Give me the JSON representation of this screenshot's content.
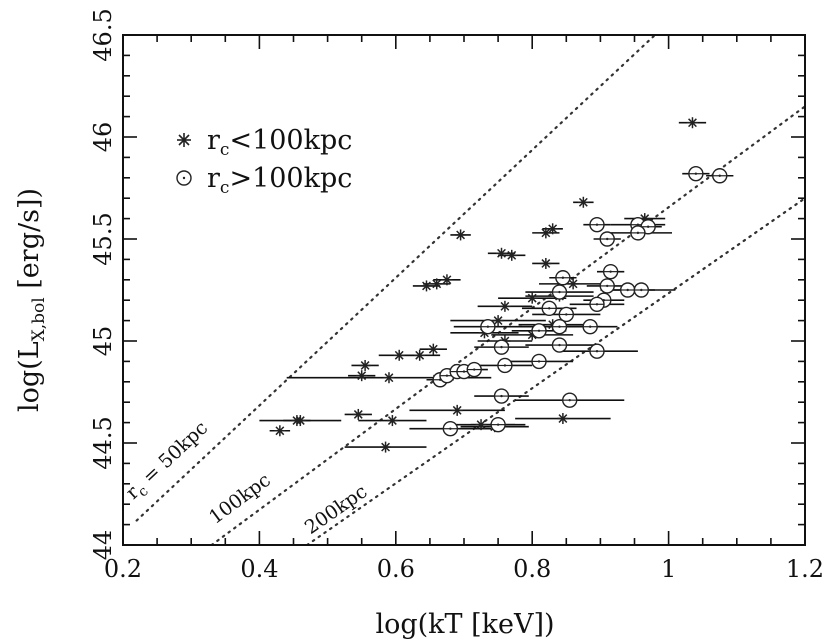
{
  "chart_data": {
    "type": "scatter",
    "title": "",
    "xlabel": "log(kT [keV])",
    "ylabel": {
      "prefix": "log(L",
      "subscript": "X,bol",
      "suffix": " [erg/s])"
    },
    "xlim": [
      0.2,
      1.2
    ],
    "ylim": [
      44,
      46.5
    ],
    "xticks": [
      0.2,
      0.4,
      0.6,
      0.8,
      1,
      1.2
    ],
    "xtick_labels": [
      "0.2",
      "0.4",
      "0.6",
      "0.8",
      "1",
      "1.2"
    ],
    "yticks": [
      44,
      44.5,
      45,
      45.5,
      46,
      46.5
    ],
    "ytick_labels": [
      "44",
      "44.5",
      "45",
      "45.5",
      "46",
      "46.5"
    ],
    "legend": [
      {
        "symbol": "star",
        "prefix": "r",
        "subscript": "c",
        "suffix": "<100kpc"
      },
      {
        "symbol": "circle",
        "prefix": "r",
        "subscript": "c",
        "suffix": ">100kpc"
      }
    ],
    "reference_lines": [
      {
        "label": "r_c = 50kpc",
        "prefix": "r",
        "subscript": "c",
        "suffix": " = 50kpc",
        "x": [
          0.22,
          0.98
        ],
        "y": [
          44.12,
          46.5
        ]
      },
      {
        "label": "100kpc",
        "prefix": "",
        "subscript": "",
        "suffix": "100kpc",
        "x": [
          0.33,
          1.2
        ],
        "y": [
          44.0,
          46.15
        ]
      },
      {
        "label": "200kpc",
        "prefix": "",
        "subscript": "",
        "suffix": "200kpc",
        "x": [
          0.47,
          1.2
        ],
        "y": [
          44.0,
          45.7
        ]
      }
    ],
    "series": [
      {
        "name": "r_c<100kpc",
        "marker": "star",
        "points": [
          {
            "x": 1.035,
            "y": 46.07,
            "xerr": 0.02
          },
          {
            "x": 0.875,
            "y": 45.68,
            "xerr": 0.015
          },
          {
            "x": 0.965,
            "y": 45.6,
            "xerr": 0.03
          },
          {
            "x": 0.695,
            "y": 45.52,
            "xerr": 0.015
          },
          {
            "x": 0.82,
            "y": 45.53,
            "xerr": 0.02
          },
          {
            "x": 0.83,
            "y": 45.55,
            "xerr": 0.015
          },
          {
            "x": 0.755,
            "y": 45.43,
            "xerr": 0.02
          },
          {
            "x": 0.77,
            "y": 45.42,
            "xerr": 0.02
          },
          {
            "x": 0.82,
            "y": 45.38,
            "xerr": 0.02
          },
          {
            "x": 0.66,
            "y": 45.28,
            "xerr": 0.02
          },
          {
            "x": 0.675,
            "y": 45.3,
            "xerr": 0.02
          },
          {
            "x": 0.645,
            "y": 45.27,
            "xerr": 0.02
          },
          {
            "x": 0.76,
            "y": 45.17,
            "xerr": 0.04
          },
          {
            "x": 0.8,
            "y": 45.21,
            "xerr": 0.05
          },
          {
            "x": 0.84,
            "y": 45.22,
            "xerr": 0.05
          },
          {
            "x": 0.86,
            "y": 45.28,
            "xerr": 0.05
          },
          {
            "x": 0.75,
            "y": 45.1,
            "xerr": 0.07
          },
          {
            "x": 0.73,
            "y": 45.04,
            "xerr": 0.05
          },
          {
            "x": 0.76,
            "y": 45.0,
            "xerr": 0.04
          },
          {
            "x": 0.8,
            "y": 45.03,
            "xerr": 0.06
          },
          {
            "x": 0.83,
            "y": 45.08,
            "xerr": 0.05
          },
          {
            "x": 0.655,
            "y": 44.96,
            "xerr": 0.02
          },
          {
            "x": 0.605,
            "y": 44.93,
            "xerr": 0.03
          },
          {
            "x": 0.635,
            "y": 44.93,
            "xerr": 0.03
          },
          {
            "x": 0.555,
            "y": 44.88,
            "xerr": 0.02
          },
          {
            "x": 0.55,
            "y": 44.83,
            "xerr": 0.02
          },
          {
            "x": 0.545,
            "y": 44.64,
            "xerr": 0.02
          },
          {
            "x": 0.59,
            "y": 44.82,
            "xerr": 0.15
          },
          {
            "x": 0.69,
            "y": 44.66,
            "xerr": 0.07
          },
          {
            "x": 0.455,
            "y": 44.61,
            "xerr": 0.02
          },
          {
            "x": 0.43,
            "y": 44.56,
            "xerr": 0.015
          },
          {
            "x": 0.46,
            "y": 44.61,
            "xerr": 0.06
          },
          {
            "x": 0.595,
            "y": 44.61,
            "xerr": 0.05
          },
          {
            "x": 0.725,
            "y": 44.59,
            "xerr": 0.05
          },
          {
            "x": 0.745,
            "y": 44.58,
            "xerr": 0.05
          },
          {
            "x": 0.845,
            "y": 44.62,
            "xerr": 0.07
          },
          {
            "x": 0.585,
            "y": 44.48,
            "xerr": 0.06
          }
        ]
      },
      {
        "name": "r_c>100kpc",
        "marker": "circle",
        "points": [
          {
            "x": 1.04,
            "y": 45.82,
            "xerr": 0.02
          },
          {
            "x": 1.075,
            "y": 45.81,
            "xerr": 0.02
          },
          {
            "x": 0.895,
            "y": 45.57,
            "xerr": 0.02
          },
          {
            "x": 0.955,
            "y": 45.57,
            "xerr": 0.04
          },
          {
            "x": 0.97,
            "y": 45.56,
            "xerr": 0.02
          },
          {
            "x": 0.955,
            "y": 45.53,
            "xerr": 0.05
          },
          {
            "x": 0.91,
            "y": 45.5,
            "xerr": 0.02
          },
          {
            "x": 0.845,
            "y": 45.31,
            "xerr": 0.02
          },
          {
            "x": 0.915,
            "y": 45.34,
            "xerr": 0.02
          },
          {
            "x": 0.91,
            "y": 45.27,
            "xerr": 0.03
          },
          {
            "x": 0.94,
            "y": 45.25,
            "xerr": 0.04
          },
          {
            "x": 0.96,
            "y": 45.25,
            "xerr": 0.05
          },
          {
            "x": 0.84,
            "y": 45.24,
            "xerr": 0.05
          },
          {
            "x": 0.905,
            "y": 45.2,
            "xerr": 0.03
          },
          {
            "x": 0.895,
            "y": 45.18,
            "xerr": 0.04
          },
          {
            "x": 0.85,
            "y": 45.13,
            "xerr": 0.05
          },
          {
            "x": 0.825,
            "y": 45.16,
            "xerr": 0.04
          },
          {
            "x": 0.84,
            "y": 45.07,
            "xerr": 0.06
          },
          {
            "x": 0.885,
            "y": 45.07,
            "xerr": 0.04
          },
          {
            "x": 0.81,
            "y": 45.05,
            "xerr": 0.04
          },
          {
            "x": 0.735,
            "y": 45.07,
            "xerr": 0.05
          },
          {
            "x": 0.755,
            "y": 44.97,
            "xerr": 0.04
          },
          {
            "x": 0.84,
            "y": 44.98,
            "xerr": 0.05
          },
          {
            "x": 0.895,
            "y": 44.95,
            "xerr": 0.06
          },
          {
            "x": 0.76,
            "y": 44.88,
            "xerr": 0.04
          },
          {
            "x": 0.81,
            "y": 44.9,
            "xerr": 0.05
          },
          {
            "x": 0.665,
            "y": 44.81,
            "xerr": 0.02
          },
          {
            "x": 0.675,
            "y": 44.83,
            "xerr": 0.02
          },
          {
            "x": 0.69,
            "y": 44.85,
            "xerr": 0.02
          },
          {
            "x": 0.7,
            "y": 44.85,
            "xerr": 0.02
          },
          {
            "x": 0.715,
            "y": 44.86,
            "xerr": 0.02
          },
          {
            "x": 0.755,
            "y": 44.73,
            "xerr": 0.04
          },
          {
            "x": 0.855,
            "y": 44.71,
            "xerr": 0.08
          },
          {
            "x": 0.68,
            "y": 44.57,
            "xerr": 0.06
          },
          {
            "x": 0.75,
            "y": 44.59,
            "xerr": 0.04
          }
        ]
      }
    ]
  }
}
